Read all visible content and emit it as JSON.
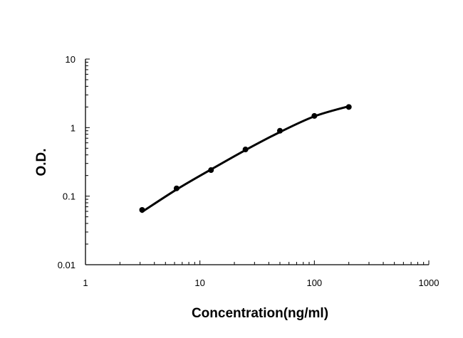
{
  "chart_data": {
    "type": "scatter",
    "title": "",
    "xlabel": "Concentration(ng/ml)",
    "ylabel": "O.D.",
    "x_scale": "log",
    "y_scale": "log",
    "xlim": [
      1,
      1000
    ],
    "ylim": [
      0.01,
      10
    ],
    "x_ticks": [
      "1",
      "10",
      "100",
      "1000"
    ],
    "y_ticks": [
      "0.01",
      "0.1",
      "1",
      "10"
    ],
    "grid": false,
    "legend": "none",
    "series": [
      {
        "marker": "circle",
        "color": "#000000",
        "x": [
          3.125,
          6.25,
          12.5,
          25,
          50,
          100,
          200
        ],
        "y": [
          0.063,
          0.13,
          0.24,
          0.48,
          0.9,
          1.48,
          2.0
        ]
      }
    ],
    "fit_curve": {
      "color": "#000000",
      "x": [
        3.125,
        6.25,
        12.5,
        25,
        50,
        100,
        200
      ],
      "y": [
        0.059,
        0.125,
        0.245,
        0.47,
        0.86,
        1.46,
        2.05
      ]
    }
  }
}
